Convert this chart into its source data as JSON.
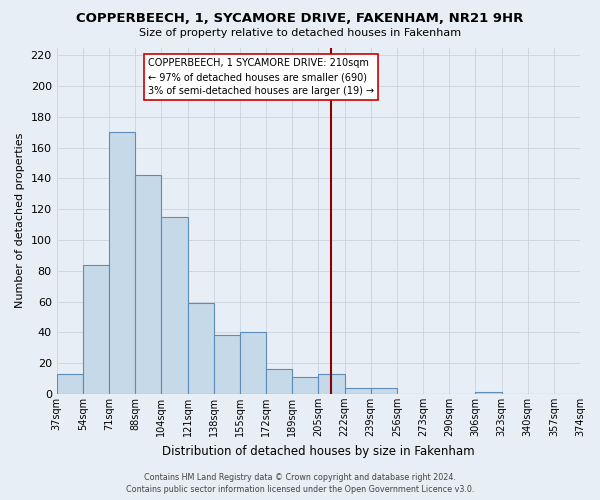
{
  "title": "COPPERBEECH, 1, SYCAMORE DRIVE, FAKENHAM, NR21 9HR",
  "subtitle": "Size of property relative to detached houses in Fakenham",
  "xlabel": "Distribution of detached houses by size in Fakenham",
  "ylabel": "Number of detached properties",
  "bar_values": [
    13,
    84,
    170,
    142,
    115,
    59,
    38,
    40,
    16,
    11,
    13,
    4,
    4,
    0,
    0,
    0,
    1,
    0,
    0,
    0
  ],
  "tick_labels": [
    "37sqm",
    "54sqm",
    "71sqm",
    "88sqm",
    "104sqm",
    "121sqm",
    "138sqm",
    "155sqm",
    "172sqm",
    "189sqm",
    "205sqm",
    "222sqm",
    "239sqm",
    "256sqm",
    "273sqm",
    "290sqm",
    "306sqm",
    "323sqm",
    "340sqm",
    "357sqm",
    "374sqm"
  ],
  "bar_color": "#c6d9e8",
  "bar_edge_color": "#5b8db8",
  "bar_edge_width": 0.8,
  "highlight_line_color": "#8b0000",
  "annotation_line1": "COPPERBEECH, 1 SYCAMORE DRIVE: 210sqm",
  "annotation_line2": "← 97% of detached houses are smaller (690)",
  "annotation_line3": "3% of semi-detached houses are larger (19) →",
  "ylim": [
    0,
    225
  ],
  "yticks": [
    0,
    20,
    40,
    60,
    80,
    100,
    120,
    140,
    160,
    180,
    200,
    220
  ],
  "background_color": "#e8eef5",
  "grid_color": "#c8d4e0",
  "footer_line1": "Contains HM Land Registry data © Crown copyright and database right 2024.",
  "footer_line2": "Contains public sector information licensed under the Open Government Licence v3.0."
}
